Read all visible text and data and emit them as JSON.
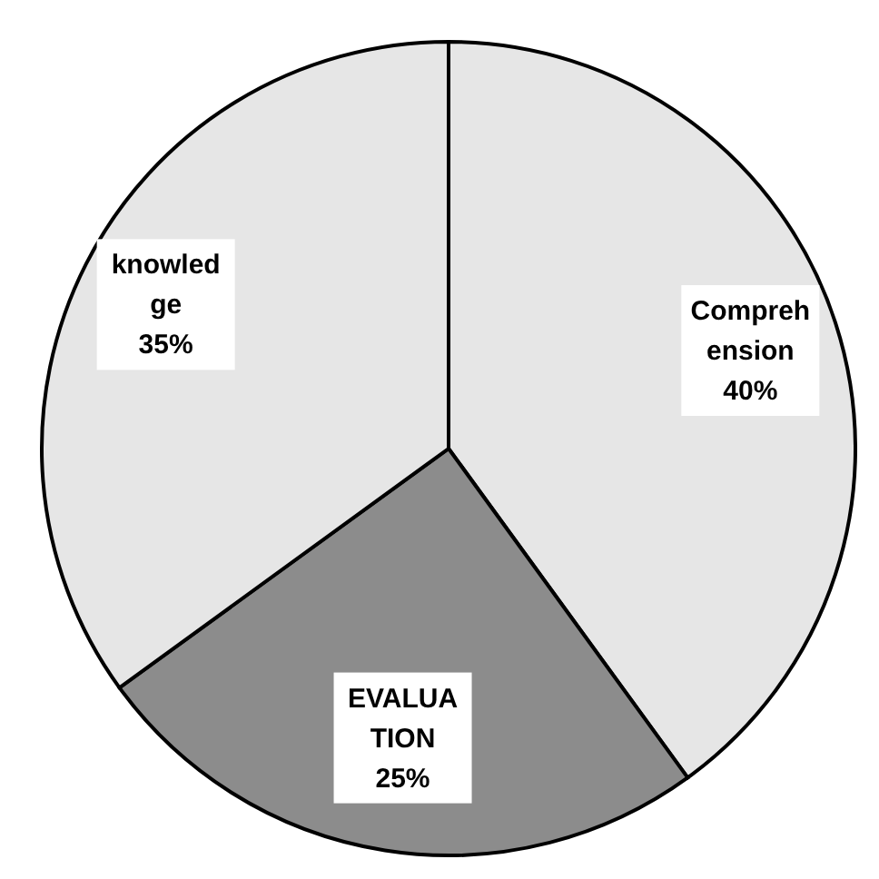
{
  "chart_data": {
    "type": "pie",
    "categories": [
      "Comprehension",
      "EVALUATION",
      "knowledge"
    ],
    "values": [
      40,
      25,
      35
    ],
    "value_labels": [
      "40%",
      "25%",
      "35%"
    ],
    "colors": [
      "#e6e6e6",
      "#8c8c8c",
      "#e6e6e6"
    ]
  }
}
